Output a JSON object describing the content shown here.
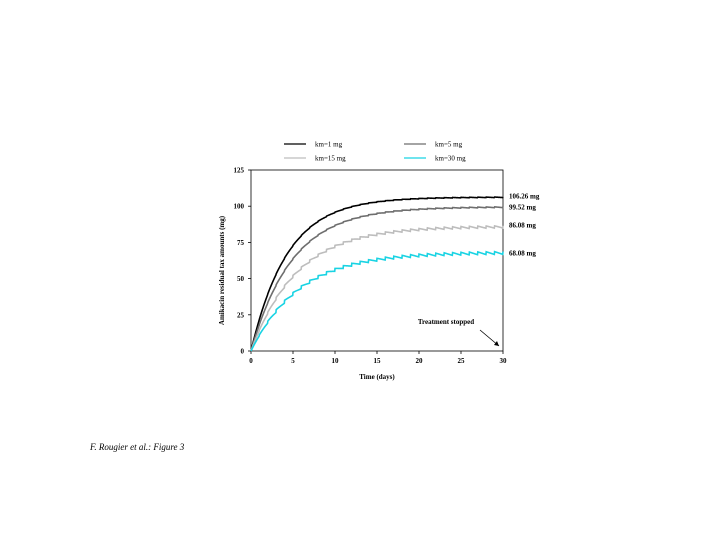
{
  "chart_data": {
    "type": "line",
    "title": "",
    "xlabel": "Time (days)",
    "ylabel": "Amikacin residual tax amounts (mg)",
    "xlim": [
      0,
      30
    ],
    "ylim": [
      0,
      125
    ],
    "x_ticks": [
      "0",
      "5",
      "10",
      "15",
      "20",
      "25",
      "30"
    ],
    "y_ticks": [
      "0",
      "25",
      "50",
      "75",
      "100",
      "125"
    ],
    "grid": false,
    "legend_position": "top",
    "series": [
      {
        "name": "km=1 mg",
        "color": "#000000",
        "plateau": 106.26,
        "t_half": 3.0,
        "ripple": 0.4,
        "end_label": "106.26 mg",
        "x": [
          0,
          2,
          4,
          6,
          8,
          10,
          12,
          15,
          18,
          20,
          25,
          30
        ],
        "y": [
          0,
          38,
          62,
          78,
          89,
          96,
          100,
          103.5,
          105,
          105.6,
          106.1,
          106.26
        ]
      },
      {
        "name": "km=5 mg",
        "color": "#6e6e6e",
        "plateau": 99.52,
        "t_half": 3.4,
        "ripple": 0.6,
        "end_label": "99.52 mg",
        "x": [
          0,
          2,
          4,
          6,
          8,
          10,
          12,
          15,
          18,
          20,
          25,
          30
        ],
        "y": [
          0,
          32,
          55,
          70,
          81,
          88,
          92.5,
          96,
          97.8,
          98.5,
          99.2,
          99.52
        ]
      },
      {
        "name": "km=15 mg",
        "color": "#bdbdbd",
        "plateau": 86.08,
        "t_half": 3.8,
        "ripple": 1.6,
        "end_label": "86.08 mg",
        "x": [
          0,
          2,
          4,
          6,
          8,
          10,
          12,
          15,
          18,
          20,
          25,
          30
        ],
        "y": [
          0,
          26,
          44,
          57,
          66,
          72.5,
          77,
          81,
          83.5,
          84.5,
          85.6,
          86.08
        ]
      },
      {
        "name": "km=30 mg",
        "color": "#19d3e3",
        "plateau": 68.08,
        "t_half": 4.0,
        "ripple": 2.0,
        "end_label": "68.08 mg",
        "x": [
          0,
          2,
          4,
          6,
          8,
          10,
          12,
          15,
          18,
          20,
          25,
          30
        ],
        "y": [
          0,
          20,
          34,
          44,
          51,
          56.5,
          60,
          63.5,
          65.8,
          66.7,
          67.6,
          68.08
        ]
      }
    ],
    "annotations": [
      {
        "text": "Treatment stopped",
        "x": 30,
        "y": 0
      }
    ]
  },
  "caption": "F. Rougier et al.: Figure 3"
}
